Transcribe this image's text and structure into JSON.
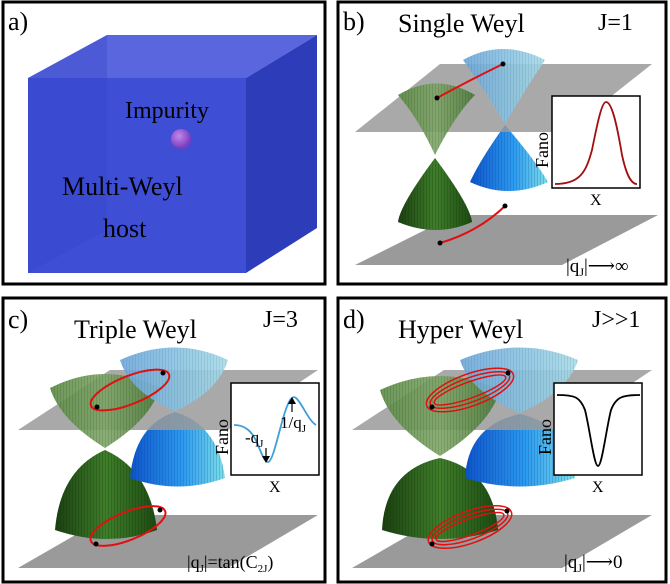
{
  "panels": {
    "a": {
      "letter": "a)",
      "impurity": "Impurity",
      "host_line1": "Multi-Weyl",
      "host_line2": "host",
      "colors": {
        "box_front": "#3d4ed6",
        "box_top": "#5563e0",
        "box_side": "#2f3fb8",
        "impurity": "#a060d8"
      }
    },
    "b": {
      "letter": "b)",
      "title": "Single Weyl",
      "j_label": "J=1",
      "inset_y": "Fano",
      "inset_x": "X",
      "limit_pre": "|q",
      "limit_sub": "J",
      "limit_post": "|⟶∞",
      "inset_curve": {
        "shape": "peak",
        "color": "#a01010"
      }
    },
    "c": {
      "letter": "c)",
      "title": "Triple Weyl",
      "j_label": "J=3",
      "inset_y": "Fano",
      "inset_x": "X",
      "minus_q_pre": "-q",
      "minus_q_sub": "J",
      "inv_q_pre": "1/q",
      "inv_q_sub": "J",
      "formula_pre": "|q",
      "formula_sub": "J",
      "formula_mid": "|=tan(C",
      "formula_sub2": "2J",
      "formula_post": ")",
      "inset_curve": {
        "shape": "asymmetric",
        "color": "#3f9fd8"
      }
    },
    "d": {
      "letter": "d)",
      "title": "Hyper Weyl",
      "j_label": "J>>1",
      "inset_y": "Fano",
      "inset_x": "X",
      "limit_pre": "|q",
      "limit_sub": "J",
      "limit_post": "|⟶0",
      "inset_curve": {
        "shape": "dip",
        "color": "#000000"
      }
    }
  },
  "colors": {
    "plane": "#9a9a9a",
    "cone_green": "#2e6a1e",
    "cone_blue": "#1f7fe0",
    "orbit": "#e01010"
  }
}
